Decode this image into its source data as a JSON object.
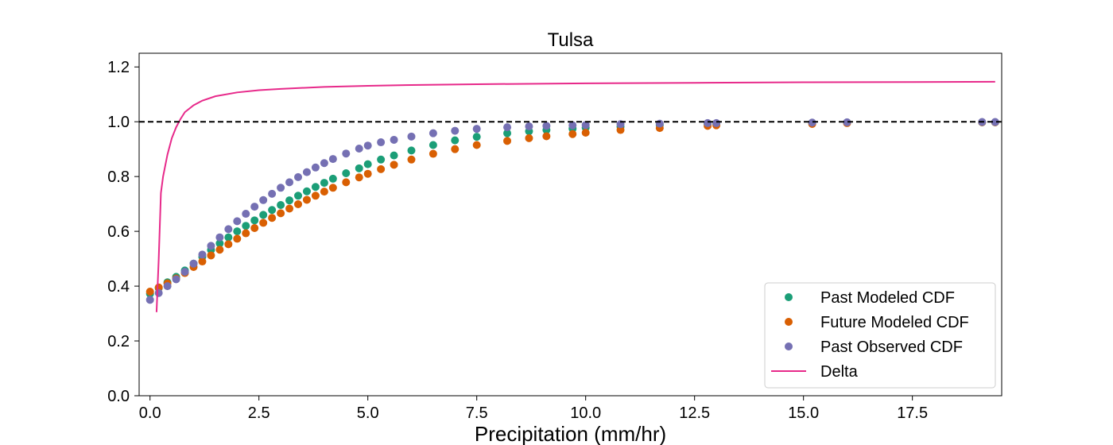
{
  "chart_data": {
    "type": "scatter",
    "title": "Tulsa",
    "xlabel": "Precipitation (mm/hr)",
    "ylabel": "",
    "xlim": [
      -0.25,
      19.55
    ],
    "ylim": [
      0.0,
      1.25
    ],
    "xticks": [
      0.0,
      2.5,
      5.0,
      7.5,
      10.0,
      12.5,
      15.0,
      17.5
    ],
    "xtick_labels": [
      "0.0",
      "2.5",
      "5.0",
      "7.5",
      "10.0",
      "12.5",
      "15.0",
      "17.5"
    ],
    "yticks": [
      0.0,
      0.2,
      0.4,
      0.6,
      0.8,
      1.0,
      1.2
    ],
    "ytick_labels": [
      "0.0",
      "0.2",
      "0.4",
      "0.6",
      "0.8",
      "1.0",
      "1.2"
    ],
    "grid": false,
    "legend_position": "lower-right",
    "reference_line": {
      "y": 1.0,
      "style": "dashed",
      "color": "#000000"
    },
    "series": [
      {
        "name": "Past Modeled CDF",
        "kind": "scatter",
        "color": "#1b9e77",
        "points": [
          [
            0.0,
            0.372
          ],
          [
            0.2,
            0.393
          ],
          [
            0.4,
            0.414
          ],
          [
            0.6,
            0.434
          ],
          [
            0.8,
            0.457
          ],
          [
            1.0,
            0.482
          ],
          [
            1.2,
            0.507
          ],
          [
            1.4,
            0.532
          ],
          [
            1.6,
            0.556
          ],
          [
            1.8,
            0.578
          ],
          [
            2.0,
            0.6
          ],
          [
            2.2,
            0.62
          ],
          [
            2.4,
            0.64
          ],
          [
            2.6,
            0.66
          ],
          [
            2.8,
            0.678
          ],
          [
            3.0,
            0.696
          ],
          [
            3.2,
            0.713
          ],
          [
            3.4,
            0.73
          ],
          [
            3.6,
            0.746
          ],
          [
            3.8,
            0.762
          ],
          [
            4.0,
            0.777
          ],
          [
            4.2,
            0.792
          ],
          [
            4.5,
            0.812
          ],
          [
            4.8,
            0.83
          ],
          [
            5.0,
            0.845
          ],
          [
            5.3,
            0.862
          ],
          [
            5.6,
            0.877
          ],
          [
            6.0,
            0.895
          ],
          [
            6.5,
            0.915
          ],
          [
            7.0,
            0.932
          ],
          [
            7.5,
            0.945
          ],
          [
            8.2,
            0.958
          ],
          [
            8.7,
            0.965
          ],
          [
            9.1,
            0.97
          ],
          [
            9.7,
            0.975
          ],
          [
            10.0,
            0.978
          ],
          [
            10.8,
            0.982
          ],
          [
            11.7,
            0.988
          ],
          [
            12.8,
            0.991
          ],
          [
            13.0,
            0.992
          ],
          [
            15.2,
            0.995
          ],
          [
            16.0,
            0.997
          ],
          [
            19.1,
            0.998
          ],
          [
            19.4,
            0.998
          ]
        ]
      },
      {
        "name": "Future Modeled CDF",
        "kind": "scatter",
        "color": "#d95f02",
        "points": [
          [
            0.0,
            0.38
          ],
          [
            0.2,
            0.395
          ],
          [
            0.4,
            0.41
          ],
          [
            0.6,
            0.428
          ],
          [
            0.8,
            0.448
          ],
          [
            1.0,
            0.47
          ],
          [
            1.2,
            0.49
          ],
          [
            1.4,
            0.512
          ],
          [
            1.6,
            0.533
          ],
          [
            1.8,
            0.553
          ],
          [
            2.0,
            0.573
          ],
          [
            2.2,
            0.593
          ],
          [
            2.4,
            0.612
          ],
          [
            2.6,
            0.631
          ],
          [
            2.8,
            0.649
          ],
          [
            3.0,
            0.666
          ],
          [
            3.2,
            0.683
          ],
          [
            3.4,
            0.699
          ],
          [
            3.6,
            0.715
          ],
          [
            3.8,
            0.73
          ],
          [
            4.0,
            0.745
          ],
          [
            4.2,
            0.759
          ],
          [
            4.5,
            0.779
          ],
          [
            4.8,
            0.797
          ],
          [
            5.0,
            0.81
          ],
          [
            5.3,
            0.827
          ],
          [
            5.6,
            0.843
          ],
          [
            6.0,
            0.862
          ],
          [
            6.5,
            0.883
          ],
          [
            7.0,
            0.9
          ],
          [
            7.5,
            0.915
          ],
          [
            8.2,
            0.93
          ],
          [
            8.7,
            0.94
          ],
          [
            9.1,
            0.947
          ],
          [
            9.7,
            0.955
          ],
          [
            10.0,
            0.96
          ],
          [
            10.8,
            0.97
          ],
          [
            11.7,
            0.977
          ],
          [
            12.8,
            0.985
          ],
          [
            13.0,
            0.987
          ],
          [
            15.2,
            0.992
          ],
          [
            16.0,
            0.995
          ],
          [
            19.1,
            0.998
          ],
          [
            19.4,
            0.998
          ]
        ]
      },
      {
        "name": "Past Observed CDF",
        "kind": "scatter",
        "color": "#7570b3",
        "points": [
          [
            0.0,
            0.35
          ],
          [
            0.2,
            0.375
          ],
          [
            0.4,
            0.4
          ],
          [
            0.6,
            0.425
          ],
          [
            0.8,
            0.452
          ],
          [
            1.0,
            0.482
          ],
          [
            1.2,
            0.515
          ],
          [
            1.4,
            0.547
          ],
          [
            1.6,
            0.578
          ],
          [
            1.8,
            0.608
          ],
          [
            2.0,
            0.637
          ],
          [
            2.2,
            0.664
          ],
          [
            2.4,
            0.69
          ],
          [
            2.6,
            0.714
          ],
          [
            2.8,
            0.737
          ],
          [
            3.0,
            0.759
          ],
          [
            3.2,
            0.779
          ],
          [
            3.4,
            0.798
          ],
          [
            3.6,
            0.816
          ],
          [
            3.8,
            0.833
          ],
          [
            4.0,
            0.849
          ],
          [
            4.2,
            0.864
          ],
          [
            4.5,
            0.884
          ],
          [
            4.8,
            0.902
          ],
          [
            5.0,
            0.913
          ],
          [
            5.3,
            0.925
          ],
          [
            5.6,
            0.934
          ],
          [
            6.0,
            0.946
          ],
          [
            6.5,
            0.958
          ],
          [
            7.0,
            0.967
          ],
          [
            7.5,
            0.974
          ],
          [
            8.2,
            0.98
          ],
          [
            8.7,
            0.983
          ],
          [
            9.1,
            0.985
          ],
          [
            9.7,
            0.987
          ],
          [
            10.0,
            0.988
          ],
          [
            10.8,
            0.991
          ],
          [
            11.7,
            0.993
          ],
          [
            12.8,
            0.995
          ],
          [
            13.0,
            0.995
          ],
          [
            15.2,
            0.997
          ],
          [
            16.0,
            0.998
          ],
          [
            19.1,
            0.999
          ],
          [
            19.4,
            0.999
          ]
        ]
      },
      {
        "name": "Delta",
        "kind": "line",
        "color": "#e7298a",
        "points": [
          [
            0.15,
            0.305
          ],
          [
            0.2,
            0.5
          ],
          [
            0.25,
            0.74
          ],
          [
            0.3,
            0.8
          ],
          [
            0.4,
            0.88
          ],
          [
            0.5,
            0.94
          ],
          [
            0.6,
            0.98
          ],
          [
            0.7,
            1.01
          ],
          [
            0.8,
            1.035
          ],
          [
            1.0,
            1.06
          ],
          [
            1.2,
            1.077
          ],
          [
            1.5,
            1.093
          ],
          [
            2.0,
            1.107
          ],
          [
            2.5,
            1.115
          ],
          [
            3.0,
            1.12
          ],
          [
            4.0,
            1.127
          ],
          [
            5.0,
            1.131
          ],
          [
            6.0,
            1.134
          ],
          [
            7.5,
            1.137
          ],
          [
            10.0,
            1.14
          ],
          [
            12.5,
            1.142
          ],
          [
            15.0,
            1.144
          ],
          [
            17.5,
            1.145
          ],
          [
            19.4,
            1.146
          ]
        ]
      }
    ]
  }
}
